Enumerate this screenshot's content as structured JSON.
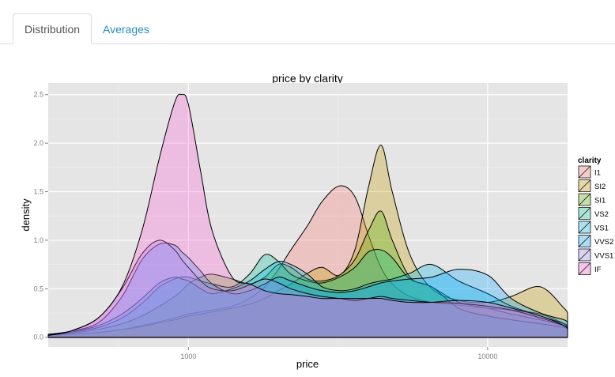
{
  "tabs": [
    {
      "label": "Distribution",
      "active": true
    },
    {
      "label": "Averages",
      "active": false
    }
  ],
  "accent_color": "#2a8ac8",
  "chart_data": {
    "type": "area",
    "title": "price by  clarity",
    "xlabel": "price",
    "ylabel": "density",
    "x_scale": "log10",
    "xlim": [
      340,
      18500
    ],
    "ylim": [
      -0.1,
      2.62
    ],
    "x_ticks": [
      1000,
      10000
    ],
    "x_tick_labels": [
      "1000",
      "10000"
    ],
    "y_ticks": [
      0.0,
      0.5,
      1.0,
      1.5,
      2.0,
      2.5
    ],
    "y_tick_labels": [
      "0.0",
      "0.5",
      "1.0",
      "1.5",
      "2.0",
      "2.5"
    ],
    "grid": true,
    "legend_title": "clarity",
    "legend_position": "right",
    "fill_opacity": 0.3,
    "x": [
      340,
      400,
      500,
      600,
      700,
      800,
      900,
      950,
      1000,
      1100,
      1200,
      1400,
      1600,
      1800,
      2000,
      2200,
      2500,
      2800,
      3200,
      3600,
      4000,
      4400,
      4800,
      5500,
      6500,
      8000,
      10000,
      12000,
      15000,
      18000,
      18500
    ],
    "series": [
      {
        "name": "I1",
        "color": "#f8766d",
        "values": [
          0.02,
          0.03,
          0.05,
          0.08,
          0.12,
          0.16,
          0.2,
          0.22,
          0.24,
          0.26,
          0.28,
          0.32,
          0.4,
          0.52,
          0.7,
          0.9,
          1.15,
          1.4,
          1.56,
          1.45,
          1.05,
          0.72,
          0.55,
          0.42,
          0.36,
          0.33,
          0.3,
          0.28,
          0.24,
          0.14,
          0.1
        ]
      },
      {
        "name": "SI2",
        "color": "#c49a00",
        "values": [
          0.02,
          0.03,
          0.05,
          0.08,
          0.11,
          0.15,
          0.18,
          0.2,
          0.22,
          0.24,
          0.26,
          0.3,
          0.34,
          0.4,
          0.48,
          0.55,
          0.66,
          0.72,
          0.64,
          0.9,
          1.55,
          1.98,
          1.5,
          0.85,
          0.5,
          0.38,
          0.36,
          0.42,
          0.52,
          0.3,
          0.25
        ]
      },
      {
        "name": "SI1",
        "color": "#53b400",
        "values": [
          0.02,
          0.04,
          0.08,
          0.14,
          0.22,
          0.32,
          0.42,
          0.48,
          0.55,
          0.62,
          0.65,
          0.6,
          0.55,
          0.62,
          0.75,
          0.72,
          0.6,
          0.58,
          0.64,
          0.8,
          1.1,
          1.3,
          1.0,
          0.62,
          0.52,
          0.36,
          0.3,
          0.24,
          0.18,
          0.12,
          0.1
        ]
      },
      {
        "name": "VS2",
        "color": "#00c094",
        "values": [
          0.03,
          0.05,
          0.1,
          0.2,
          0.35,
          0.52,
          0.6,
          0.62,
          0.62,
          0.58,
          0.55,
          0.52,
          0.65,
          0.85,
          0.78,
          0.65,
          0.58,
          0.56,
          0.62,
          0.72,
          0.88,
          0.9,
          0.82,
          0.6,
          0.52,
          0.3,
          0.22,
          0.18,
          0.14,
          0.1,
          0.08
        ]
      },
      {
        "name": "VS1",
        "color": "#00b6eb",
        "values": [
          0.03,
          0.05,
          0.12,
          0.24,
          0.4,
          0.56,
          0.62,
          0.6,
          0.58,
          0.5,
          0.45,
          0.5,
          0.58,
          0.7,
          0.78,
          0.75,
          0.65,
          0.52,
          0.48,
          0.5,
          0.55,
          0.58,
          0.6,
          0.66,
          0.75,
          0.58,
          0.45,
          0.32,
          0.22,
          0.14,
          0.12
        ]
      },
      {
        "name": "VVS2",
        "color": "#06a4ff",
        "values": [
          0.03,
          0.06,
          0.15,
          0.42,
          0.8,
          0.96,
          0.95,
          0.88,
          0.82,
          0.68,
          0.55,
          0.45,
          0.48,
          0.55,
          0.62,
          0.58,
          0.52,
          0.48,
          0.46,
          0.48,
          0.52,
          0.56,
          0.58,
          0.6,
          0.62,
          0.7,
          0.64,
          0.4,
          0.25,
          0.18,
          0.15
        ]
      },
      {
        "name": "VVS1",
        "color": "#a58aff",
        "values": [
          0.02,
          0.06,
          0.2,
          0.5,
          0.86,
          1.0,
          0.9,
          0.8,
          0.72,
          0.58,
          0.5,
          0.48,
          0.54,
          0.6,
          0.56,
          0.5,
          0.45,
          0.42,
          0.4,
          0.38,
          0.4,
          0.42,
          0.4,
          0.38,
          0.36,
          0.35,
          0.32,
          0.28,
          0.2,
          0.12,
          0.1
        ]
      },
      {
        "name": "IF",
        "color": "#fb61d7",
        "values": [
          0.02,
          0.06,
          0.2,
          0.52,
          1.1,
          1.85,
          2.42,
          2.5,
          2.4,
          1.7,
          1.1,
          0.62,
          0.55,
          0.48,
          0.45,
          0.44,
          0.42,
          0.4,
          0.4,
          0.4,
          0.4,
          0.4,
          0.38,
          0.36,
          0.36,
          0.38,
          0.36,
          0.3,
          0.22,
          0.12,
          0.08
        ]
      }
    ]
  }
}
